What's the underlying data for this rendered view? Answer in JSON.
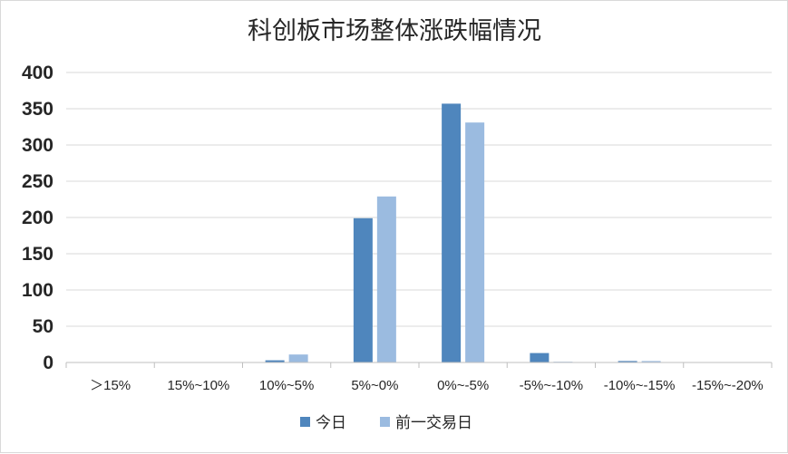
{
  "chart_data": {
    "type": "bar",
    "title": "科创板市场整体涨跌幅情况",
    "xlabel": "",
    "ylabel": "",
    "categories": [
      ">15%",
      "15%~10%",
      "10%~5%",
      "5%~0%",
      "0%~-5%",
      "-5%~-10%",
      "-10%~-15%",
      "-15%~-20%"
    ],
    "category_labels": [
      "＞15%",
      "15%~10%",
      "10%~5%",
      "5%~0%",
      "0%~-5%",
      "-5%~-10%",
      "-10%~-15%",
      "-15%~-20%"
    ],
    "series": [
      {
        "name": "今日",
        "color": "#4f86bd",
        "values": [
          0,
          0,
          3,
          199,
          357,
          13,
          2,
          0
        ]
      },
      {
        "name": "前一交易日",
        "color": "#9bbbe0",
        "values": [
          0,
          0,
          11,
          229,
          331,
          1,
          2,
          0
        ]
      }
    ],
    "ylim": [
      0,
      400
    ],
    "yticks": [
      0,
      50,
      100,
      150,
      200,
      250,
      300,
      350,
      400
    ],
    "grid": true,
    "legend_position": "bottom"
  }
}
